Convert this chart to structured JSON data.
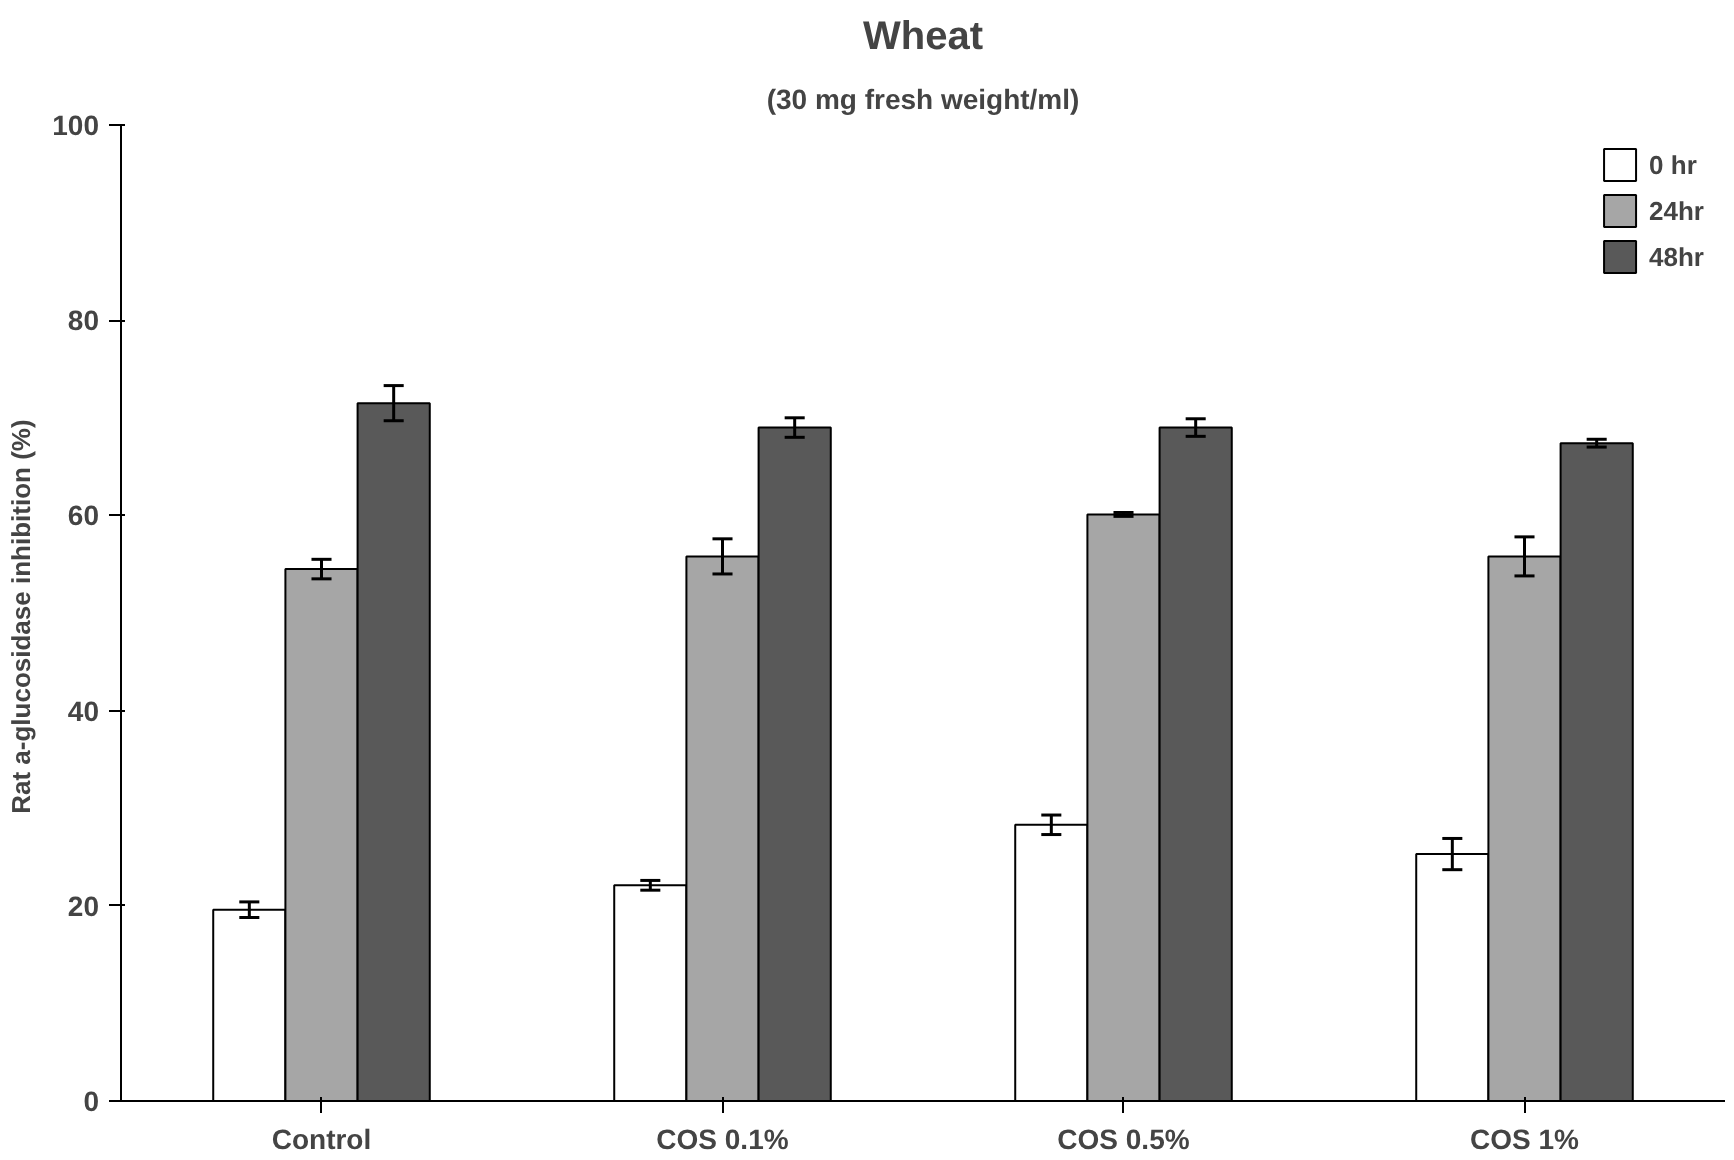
{
  "chart_data": {
    "type": "bar",
    "title": "Wheat",
    "subtitle": "(30 mg fresh weight/ml)",
    "ylabel": "Rat a-glucosidase  inhibition (%)",
    "categories": [
      "Control",
      "COS 0.1%",
      "COS 0.5%",
      "COS 1%"
    ],
    "series": [
      {
        "name": "0 hr",
        "color": "#ffffff",
        "values": [
          19.6,
          22.1,
          28.3,
          25.3
        ],
        "errors": [
          0.8,
          0.5,
          1,
          1.6
        ]
      },
      {
        "name": "24hr",
        "color": "#a6a6a6",
        "values": [
          54.5,
          55.8,
          60.1,
          55.8
        ],
        "errors": [
          1,
          1.8,
          0.2,
          2
        ]
      },
      {
        "name": "48hr",
        "color": "#595959",
        "values": [
          71.5,
          69,
          69,
          67.4
        ],
        "errors": [
          1.8,
          1,
          0.9,
          0.4
        ]
      }
    ],
    "ylim": [
      0,
      100
    ],
    "yticks": [
      0,
      20,
      40,
      60,
      80,
      100
    ],
    "grid": false,
    "legend": "top right"
  }
}
